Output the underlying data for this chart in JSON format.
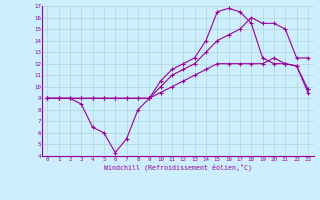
{
  "background_color": "#cceeff",
  "grid_color": "#aacccc",
  "line_color": "#990099",
  "xlim": [
    -0.5,
    23.5
  ],
  "ylim": [
    4,
    17
  ],
  "xticks": [
    0,
    1,
    2,
    3,
    4,
    5,
    6,
    7,
    8,
    9,
    10,
    11,
    12,
    13,
    14,
    15,
    16,
    17,
    18,
    19,
    20,
    21,
    22,
    23
  ],
  "yticks": [
    4,
    5,
    6,
    7,
    8,
    9,
    10,
    11,
    12,
    13,
    14,
    15,
    16,
    17
  ],
  "xlabel": "Windchill (Refroidissement éolien,°C)",
  "line1_x": [
    0,
    1,
    2,
    3,
    4,
    5,
    6,
    7,
    8,
    9,
    10,
    11,
    12,
    13,
    14,
    15,
    16,
    17,
    18,
    19,
    20,
    21,
    22,
    23
  ],
  "line1_y": [
    9,
    9,
    9,
    9,
    9,
    9,
    9,
    9,
    9,
    9,
    9.5,
    10,
    10.5,
    11,
    11.5,
    12,
    12,
    12,
    12,
    12,
    12.5,
    12,
    11.8,
    9.5
  ],
  "line2_x": [
    0,
    1,
    2,
    3,
    4,
    5,
    6,
    7,
    8,
    9,
    10,
    11,
    12,
    13,
    14,
    15,
    16,
    17,
    18,
    19,
    20,
    21,
    22,
    23
  ],
  "line2_y": [
    9,
    9,
    9,
    9,
    9,
    9,
    9,
    9,
    9,
    9,
    10,
    11,
    11.5,
    12,
    13,
    14,
    14.5,
    15,
    16,
    15.5,
    15.5,
    15,
    12.5,
    12.5
  ],
  "line3_x": [
    0,
    1,
    2,
    3,
    4,
    5,
    6,
    7,
    8,
    9,
    10,
    11,
    12,
    13,
    14,
    15,
    16,
    17,
    18,
    19,
    20,
    21,
    22,
    23
  ],
  "line3_y": [
    9,
    9,
    9,
    8.5,
    6.5,
    6,
    4.3,
    5.5,
    8,
    9,
    10.5,
    11.5,
    12,
    12.5,
    14,
    16.5,
    16.8,
    16.5,
    15.5,
    12.5,
    12,
    12,
    11.8,
    9.8
  ]
}
